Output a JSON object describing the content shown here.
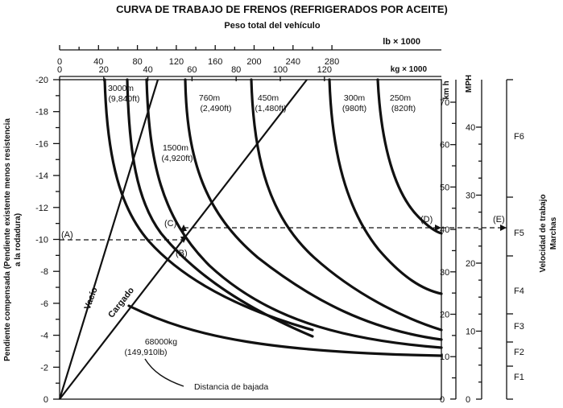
{
  "title": "CURVA DE TRABAJO DE FRENOS (REFRIGERADOS POR ACEITE)",
  "top_axis_label": "Peso total del vehículo",
  "lb_axis": {
    "unit": "lb × 1000",
    "ticks": [
      "0",
      "40",
      "80",
      "120",
      "160",
      "200",
      "240",
      "280"
    ]
  },
  "kg_axis": {
    "unit": "kg × 1000",
    "ticks": [
      "0",
      "20",
      "40",
      "60",
      "80",
      "100",
      "120"
    ]
  },
  "y_axis_label_line1": "Pendiente compensada (Pendiente existente menos resistencia",
  "y_axis_label_line2": "a la rodadura)",
  "y_ticks": [
    "-20",
    "-18",
    "-16",
    "-14",
    "-12",
    "-10",
    "-8",
    "-6",
    "-4",
    "-2",
    "0"
  ],
  "kmh_axis": {
    "unit": "km h",
    "ticks": [
      "70",
      "60",
      "50",
      "40",
      "30",
      "20",
      "10",
      "0"
    ]
  },
  "mph_axis": {
    "unit": "MPH",
    "ticks": [
      "40",
      "30",
      "20",
      "10",
      "0"
    ]
  },
  "gears_axis_label_line1": "Velocidad de trabajo",
  "gears_axis_label_line2": "Marchas",
  "gears": [
    "F6",
    "F5",
    "F4",
    "F3",
    "F2",
    "F1"
  ],
  "lines": {
    "empty": "Vacío",
    "loaded": "Cargado"
  },
  "points": {
    "a": "(A)",
    "b": "(B)",
    "c": "(C)",
    "d": "(D)",
    "e": "(E)"
  },
  "curve_labels": [
    {
      "m": "3000m",
      "ft": "(9,840ft)"
    },
    {
      "m": "1500m",
      "ft": "(4,920ft)"
    },
    {
      "m": "760m",
      "ft": "(2,490ft)"
    },
    {
      "m": "450m",
      "ft": "(1,480ft)"
    },
    {
      "m": "300m",
      "ft": "(980ft)"
    },
    {
      "m": "250m",
      "ft": "(820ft)"
    }
  ],
  "weight_note": {
    "kg": "68000kg",
    "lb": "(149,910lb)"
  },
  "distance_label": "Distancia de bajada"
}
